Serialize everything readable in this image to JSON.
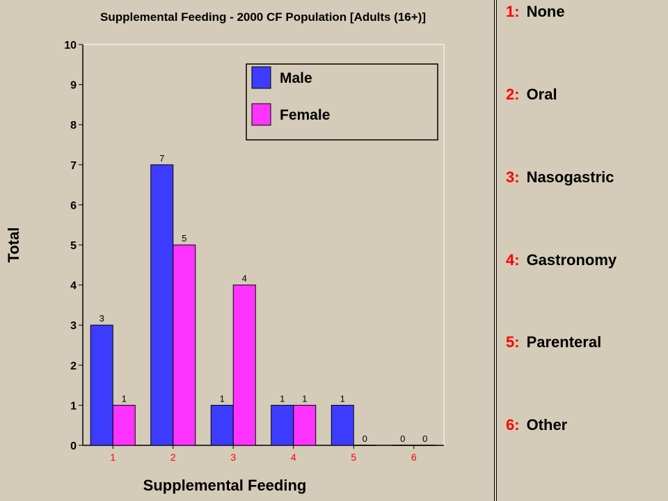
{
  "colors": {
    "male": "#3c3cff",
    "female": "#ff33ff",
    "tick_label": "#ff0000",
    "key_number": "#ff0000"
  },
  "chart_data": {
    "type": "bar",
    "title": "Supplemental Feeding - 2000 CF Population [Adults (16+)]",
    "xlabel": "Supplemental Feeding",
    "ylabel": "Total",
    "categories": [
      "1",
      "2",
      "3",
      "4",
      "5",
      "6"
    ],
    "ylim": [
      0,
      10
    ],
    "yticks": [
      "0",
      "1",
      "2",
      "3",
      "4",
      "5",
      "6",
      "7",
      "8",
      "9",
      "10"
    ],
    "grid": false,
    "legend_position": "top-right",
    "series": [
      {
        "name": "Male",
        "values": [
          3,
          7,
          1,
          1,
          1,
          0
        ]
      },
      {
        "name": "Female",
        "values": [
          1,
          5,
          4,
          1,
          0,
          0
        ]
      }
    ]
  },
  "key": [
    {
      "number": "1:",
      "label": "None"
    },
    {
      "number": "2:",
      "label": "Oral"
    },
    {
      "number": "3:",
      "label": "Nasogastric"
    },
    {
      "number": "4:",
      "label": "Gastronomy"
    },
    {
      "number": "5:",
      "label": "Parenteral"
    },
    {
      "number": "6:",
      "label": "Other"
    }
  ]
}
